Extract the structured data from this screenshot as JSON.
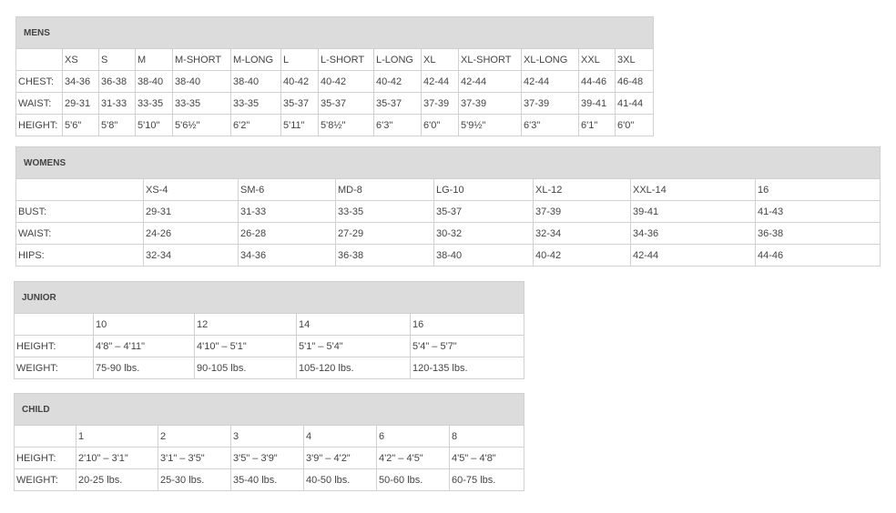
{
  "mens": {
    "title": "MENS",
    "sizes": [
      "XS",
      "S",
      "M",
      "M-SHORT",
      "M-LONG",
      "L",
      "L-SHORT",
      "L-LONG",
      "XL",
      "XL-SHORT",
      "XL-LONG",
      "XXL",
      "3XL"
    ],
    "rows": [
      {
        "label": "CHEST:",
        "values": [
          "34-36",
          "36-38",
          "38-40",
          "38-40",
          "38-40",
          "40-42",
          "40-42",
          "40-42",
          "42-44",
          "42-44",
          "42-44",
          "44-46",
          "46-48"
        ]
      },
      {
        "label": "WAIST:",
        "values": [
          "29-31",
          "31-33",
          "33-35",
          "33-35",
          "33-35",
          "35-37",
          "35-37",
          "35-37",
          "37-39",
          "37-39",
          "37-39",
          "39-41",
          "41-44"
        ]
      },
      {
        "label": "HEIGHT:",
        "values": [
          "5'6\"",
          "5'8\"",
          "5'10\"",
          "5'6½\"",
          "6'2\"",
          "5'11\"",
          "5'8½\"",
          "6'3\"",
          "6'0\"",
          "5'9½\"",
          "6'3\"",
          "6'1\"",
          "6'0\""
        ]
      }
    ]
  },
  "womens": {
    "title": "WOMENS",
    "sizes": [
      "XS-4",
      "SM-6",
      "MD-8",
      "LG-10",
      "XL-12",
      "XXL-14",
      "16"
    ],
    "rows": [
      {
        "label": "BUST:",
        "values": [
          "29-31",
          "31-33",
          "33-35",
          "35-37",
          "37-39",
          "39-41",
          "41-43"
        ]
      },
      {
        "label": "WAIST:",
        "values": [
          "24-26",
          "26-28",
          "27-29",
          "30-32",
          "32-34",
          "34-36",
          "36-38"
        ]
      },
      {
        "label": "HIPS:",
        "values": [
          "32-34",
          "34-36",
          "36-38",
          "38-40",
          "40-42",
          "42-44",
          "44-46"
        ]
      }
    ]
  },
  "junior": {
    "title": "JUNIOR",
    "sizes": [
      "10",
      "12",
      "14",
      "16"
    ],
    "rows": [
      {
        "label": "HEIGHT:",
        "values": [
          "4'8\" – 4'11\"",
          "4'10\" – 5'1\"",
          "5'1\" – 5'4\"",
          "5'4\" – 5'7\""
        ]
      },
      {
        "label": "WEIGHT:",
        "values": [
          "75-90 lbs.",
          "90-105 lbs.",
          "105-120 lbs.",
          "120-135 lbs."
        ]
      }
    ]
  },
  "child": {
    "title": "CHILD",
    "sizes": [
      "1",
      "2",
      "3",
      "4",
      "6",
      "8"
    ],
    "rows": [
      {
        "label": "HEIGHT:",
        "values": [
          "2'10\" – 3'1\"",
          "3'1\" – 3'5\"",
          "3'5\" – 3'9\"",
          "3'9\" – 4'2\"",
          "4'2\" – 4'5\"",
          "4'5\" – 4'8\""
        ]
      },
      {
        "label": "WEIGHT:",
        "values": [
          "20-25 lbs.",
          "25-30 lbs.",
          "35-40 lbs.",
          "40-50 lbs.",
          "50-60 lbs.",
          "60-75 lbs."
        ]
      }
    ]
  }
}
